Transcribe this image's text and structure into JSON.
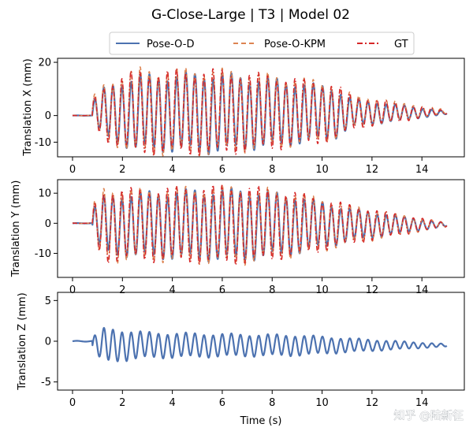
{
  "chart_data": {
    "type": "line",
    "title": "G-Close-Large | T3 | Model 02",
    "xlabel": "Time (s)",
    "legend": {
      "position": "top-center",
      "entries": [
        {
          "label": "Pose-O-D",
          "color": "#4C72B0",
          "style": "solid"
        },
        {
          "label": "Pose-O-KPM",
          "color": "#DD8452",
          "style": "dashed"
        },
        {
          "label": "GT",
          "color": "#D62728",
          "style": "dash-dot"
        }
      ]
    },
    "x_ticks": [
      "0",
      "2",
      "4",
      "6",
      "8",
      "10",
      "12",
      "14"
    ],
    "x_range": [
      -0.6,
      15.7
    ],
    "signal": {
      "t_start": 0,
      "t_end": 15,
      "onset_s": 0.8,
      "period_s": 0.365,
      "decay_start_s": 11.2,
      "decay_rate": 0.9
    },
    "panels": [
      {
        "id": "translation-x",
        "ylabel": "Translation X (mm)",
        "ylim": [
          -15.5,
          21.5
        ],
        "y_ticks": [
          "20",
          "0",
          "-10"
        ],
        "y_tick_values": [
          20,
          0,
          -10
        ],
        "series": [
          {
            "name": "Pose-O-D",
            "amplitude_envelope": {
              "t": [
                0.8,
                1.3,
                2.5,
                5.5,
                8.0,
                10.5,
                11.2,
                15.0
              ],
              "amp": [
                4,
                9,
                13,
                14,
                12,
                9,
                5,
                0.5
              ]
            },
            "offset": 1.0
          },
          {
            "name": "Pose-O-KPM",
            "amplitude_envelope": {
              "t": [
                0.8,
                1.3,
                2.5,
                5.5,
                8.0,
                10.5,
                11.2,
                15.0
              ],
              "amp": [
                5,
                10,
                15,
                15,
                13,
                10,
                6,
                0.6
              ]
            },
            "offset": 1.5
          },
          {
            "name": "GT",
            "amplitude_envelope": {
              "t": [
                0.8,
                1.3,
                2.5,
                5.5,
                8.0,
                10.5,
                11.2,
                15.0
              ],
              "amp": [
                4.5,
                10,
                14.5,
                15,
                13,
                10,
                6,
                0.6
              ]
            },
            "offset": 1.2
          }
        ]
      },
      {
        "id": "translation-y",
        "ylabel": "Translation Y (mm)",
        "ylim": [
          -18,
          14.5
        ],
        "y_ticks": [
          "10",
          "0",
          "-10"
        ],
        "y_tick_values": [
          10,
          0,
          -10
        ],
        "series": [
          {
            "name": "Pose-O-D",
            "amplitude_envelope": {
              "t": [
                0.8,
                1.3,
                2.5,
                5.5,
                7.0,
                9.0,
                11.2,
                15.0
              ],
              "amp": [
                5,
                9,
                10,
                11,
                11,
                9,
                5,
                0.5
              ]
            },
            "offset": -0.5
          },
          {
            "name": "Pose-O-KPM",
            "amplitude_envelope": {
              "t": [
                0.8,
                1.3,
                2.5,
                5.5,
                7.0,
                9.0,
                11.2,
                15.0
              ],
              "amp": [
                6,
                12,
                11,
                12,
                12,
                10,
                6,
                0.6
              ]
            },
            "offset": -0.5
          },
          {
            "name": "GT",
            "amplitude_envelope": {
              "t": [
                0.8,
                1.3,
                2.5,
                5.5,
                7.0,
                9.0,
                11.2,
                15.0
              ],
              "amp": [
                5.5,
                11.5,
                11,
                12,
                12,
                10,
                6,
                0.6
              ]
            },
            "offset": -0.5
          }
        ]
      },
      {
        "id": "translation-z",
        "ylabel": "Translation Z (mm)",
        "ylim": [
          -6,
          6
        ],
        "y_ticks": [
          "5",
          "0",
          "-5"
        ],
        "y_tick_values": [
          5,
          0,
          -5
        ],
        "series": [
          {
            "name": "Pose-O-D",
            "amplitude_envelope": {
              "t": [
                0.8,
                1.3,
                3.0,
                6.5,
                9.0,
                11.2,
                15.0
              ],
              "amp": [
                1.0,
                2.0,
                1.5,
                1.3,
                1.2,
                0.8,
                0.15
              ]
            },
            "offset": -0.5
          }
        ]
      }
    ]
  },
  "watermark": "知乎 @陆新征"
}
